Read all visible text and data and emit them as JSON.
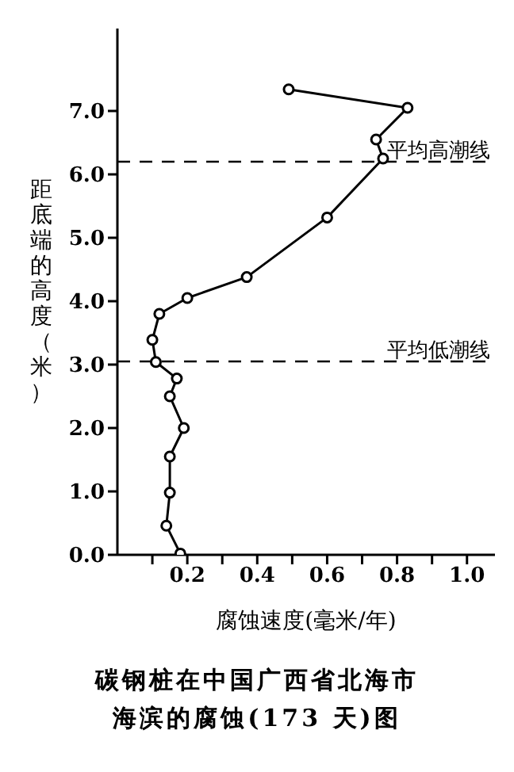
{
  "chart_data": {
    "type": "line",
    "title": "碳钢桩在中国广西省北海市海滨的腐蚀(173 天)图",
    "xlabel": "腐蚀速度(毫米/年)",
    "ylabel": "距底端的高度（米）",
    "series": [
      {
        "color": "#000000",
        "x": [
          0.49,
          0.83,
          0.74,
          0.76,
          0.6,
          0.37,
          0.2,
          0.12,
          0.1,
          0.11,
          0.17,
          0.15,
          0.19,
          0.15,
          0.15,
          0.14,
          0.18
        ],
        "values": [
          7.34,
          7.05,
          6.55,
          6.25,
          5.32,
          4.38,
          4.05,
          3.8,
          3.39,
          3.04,
          2.78,
          2.5,
          2.0,
          1.55,
          0.98,
          0.46,
          0.02
        ]
      }
    ],
    "xlim": [
      0,
      1.08
    ],
    "xticks": [
      {
        "value": 0.1,
        "label": null
      },
      0.2,
      {
        "value": 0.3,
        "label": null
      },
      0.4,
      {
        "value": 0.5,
        "label": null
      },
      0.6,
      {
        "value": 0.7,
        "label": null
      },
      0.8,
      {
        "value": 0.9,
        "label": null
      },
      {
        "value": 1,
        "label": "1.0"
      }
    ],
    "ylim": [
      0,
      8.3
    ],
    "yticks": [
      {
        "value": 0,
        "label": "0.0"
      },
      {
        "value": 1,
        "label": "1.0"
      },
      {
        "value": 2,
        "label": "2.0"
      },
      {
        "value": 3,
        "label": "3.0"
      },
      {
        "value": 4,
        "label": "4.0"
      },
      {
        "value": 5,
        "label": "5.0"
      },
      {
        "value": 6,
        "label": "6.0"
      },
      {
        "value": 7,
        "label": "7.0"
      }
    ],
    "ref_lines": [
      {
        "axis": "y",
        "value": 6.2,
        "label": "平均高潮线",
        "line_style": "dashed",
        "color": "#000000"
      },
      {
        "axis": "y",
        "value": 3.05,
        "label": "平均低潮线",
        "line_style": "dashed",
        "color": "#000000"
      }
    ],
    "grid": false,
    "legend": false,
    "marker": "circle",
    "line_style": "solid"
  }
}
